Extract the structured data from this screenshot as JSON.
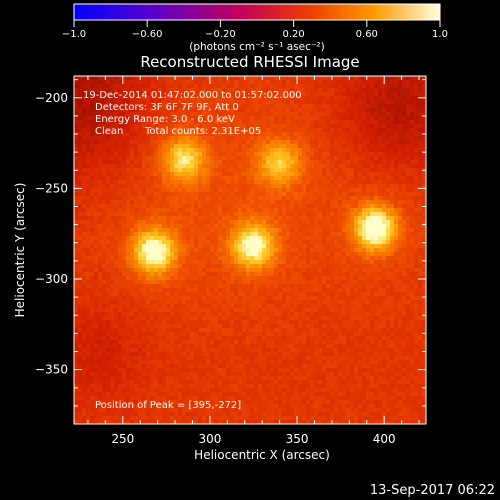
{
  "chart_data": {
    "type": "heatmap",
    "title": "Reconstructed RHESSI Image",
    "xlabel": "Heliocentric X (arcsec)",
    "ylabel": "Heliocentric Y (arcsec)",
    "xlim": [
      222,
      424
    ],
    "ylim": [
      -380,
      -188
    ],
    "x_ticks": [
      250,
      300,
      350,
      400
    ],
    "y_ticks": [
      -200,
      -250,
      -300,
      -350
    ],
    "x_tick_labels": [
      "250",
      "300",
      "350",
      "400"
    ],
    "y_tick_labels": [
      "−200",
      "−250",
      "−300",
      "−350"
    ],
    "colorbar": {
      "range": [
        -1.0,
        1.0
      ],
      "ticks": [
        -1.0,
        -0.6,
        -0.2,
        0.2,
        0.6,
        1.0
      ],
      "tick_labels": [
        "−1.0",
        "−0.60",
        "−0.20",
        "0.20",
        "0.60",
        "1.0"
      ],
      "unit_label": "(photons cm⁻² s⁻¹ asec⁻²)"
    },
    "sources": [
      {
        "x": 395,
        "y": -272,
        "value": 1.0
      },
      {
        "x": 268,
        "y": -285,
        "value": 0.9
      },
      {
        "x": 325,
        "y": -282,
        "value": 0.85
      },
      {
        "x": 285,
        "y": -234,
        "value": 0.7
      },
      {
        "x": 340,
        "y": -236,
        "value": 0.6
      }
    ],
    "annotations": {
      "time_range": "19-Dec-2014 01:47:02.000 to 01:57:02.000",
      "detectors": "Detectors: 3F 6F 7F 9F, Att 0",
      "energy": "Energy Range: 3.0 - 6.0 keV",
      "method": "Clean",
      "counts": "Total counts: 2.31E+05",
      "peak": "Position of Peak = [395,-272]"
    }
  },
  "footer": {
    "date": "13-Sep-2017 06:22"
  }
}
